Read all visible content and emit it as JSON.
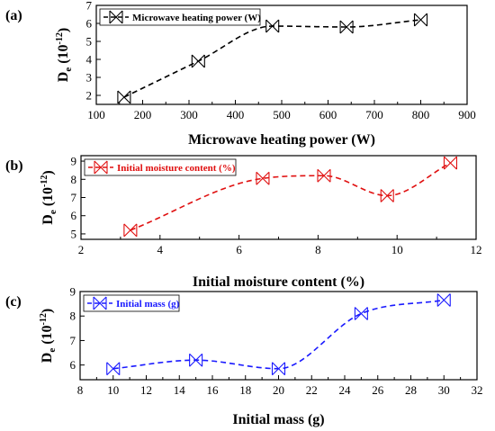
{
  "chart_data": [
    {
      "type": "line",
      "panel_label": "(a)",
      "title": "",
      "xlabel": "Microwave heating power (W)",
      "ylabel_main": "D",
      "ylabel_sub": "e",
      "ylabel_unit": "(10",
      "ylabel_exp": "-12",
      "ylabel_close": ")",
      "xlim": [
        100,
        900
      ],
      "ylim": [
        1.5,
        7
      ],
      "xticks": [
        "100",
        "200",
        "300",
        "400",
        "500",
        "600",
        "700",
        "800",
        "900"
      ],
      "xtick_values": [
        100,
        200,
        300,
        400,
        500,
        600,
        700,
        800,
        900
      ],
      "yticks": [
        "2",
        "3",
        "4",
        "5",
        "6",
        "7"
      ],
      "ytick_values": [
        2,
        3,
        4,
        5,
        6,
        7
      ],
      "legend_position": "top-left",
      "grid": false,
      "series": [
        {
          "name": "Microwave heating power (W)",
          "color": "#000000",
          "marker": "x-box",
          "x": [
            160,
            320,
            480,
            640,
            800
          ],
          "y": [
            1.9,
            3.9,
            5.85,
            5.8,
            6.2
          ]
        }
      ]
    },
    {
      "type": "line",
      "panel_label": "(b)",
      "title": "",
      "xlabel": "Initial moisture content (%)",
      "ylabel_main": "D",
      "ylabel_sub": "e",
      "ylabel_unit": "(10",
      "ylabel_exp": "-12",
      "ylabel_close": ")",
      "xlim": [
        2,
        12
      ],
      "ylim": [
        4.7,
        9.3
      ],
      "xticks": [
        "2",
        "4",
        "6",
        "8",
        "10",
        "12"
      ],
      "xtick_values": [
        2,
        4,
        6,
        8,
        10,
        12
      ],
      "yticks": [
        "5",
        "6",
        "7",
        "8",
        "9"
      ],
      "ytick_values": [
        5,
        6,
        7,
        8,
        9
      ],
      "legend_position": "top-left",
      "grid": false,
      "series": [
        {
          "name": "Initial moisture content (%)",
          "color": "#e01010",
          "marker": "x-box",
          "x": [
            3.25,
            6.6,
            8.15,
            9.75,
            11.35
          ],
          "y": [
            5.2,
            8.05,
            8.2,
            7.1,
            8.9
          ]
        }
      ]
    },
    {
      "type": "line",
      "panel_label": "(c)",
      "title": "",
      "xlabel": "Initial mass (g)",
      "ylabel_main": "D",
      "ylabel_sub": "e",
      "ylabel_unit": "(10",
      "ylabel_exp": "-12",
      "ylabel_close": ")",
      "xlim": [
        8,
        32
      ],
      "ylim": [
        5.4,
        9
      ],
      "xticks": [
        "8",
        "10",
        "12",
        "14",
        "16",
        "18",
        "20",
        "22",
        "24",
        "26",
        "28",
        "30",
        "32"
      ],
      "xtick_values": [
        8,
        10,
        12,
        14,
        16,
        18,
        20,
        22,
        24,
        26,
        28,
        30,
        32
      ],
      "yticks": [
        "6",
        "7",
        "8",
        "9"
      ],
      "ytick_values": [
        6,
        7,
        8,
        9
      ],
      "legend_position": "top-left",
      "grid": false,
      "series": [
        {
          "name": "Initial mass (g)",
          "color": "#1a1aff",
          "marker": "x-box",
          "x": [
            10,
            15,
            20,
            25,
            30
          ],
          "y": [
            5.85,
            6.2,
            5.85,
            8.1,
            8.65
          ]
        }
      ]
    }
  ]
}
